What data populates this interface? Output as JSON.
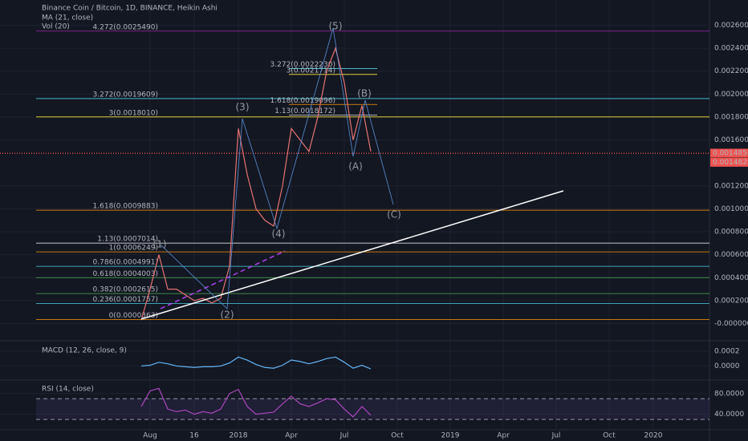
{
  "chart_data": [
    {
      "type": "line",
      "title": "Binance Coin / Bitcoin, 1D, BINANCE, Heikin Ashi",
      "indicators": [
        "MA (21, close)",
        "Vol (20)"
      ],
      "categories": [
        null,
        "Aug",
        null,
        null,
        null,
        null,
        "16",
        null,
        null,
        null,
        null,
        "2018",
        null,
        null,
        null,
        null,
        null,
        "Apr",
        null,
        null,
        null,
        null,
        null,
        "Jul",
        null,
        null,
        null,
        null,
        null,
        "Oct",
        null,
        null,
        null,
        null,
        null,
        "2019",
        null,
        null,
        null,
        null,
        null,
        "Apr",
        null,
        null,
        null,
        null,
        null,
        "Jul",
        null,
        null,
        null,
        null,
        null,
        "Oct",
        null,
        null,
        null,
        null,
        "2020",
        null
      ],
      "values": [
        3e-05,
        0.0003,
        0.0006,
        0.0003,
        0.0003,
        0.00025,
        0.0002,
        0.00022,
        0.00018,
        0.00022,
        0.0005,
        0.0017,
        0.0013,
        0.001,
        0.0009,
        0.00085,
        0.0012,
        0.0017,
        0.0016,
        0.0015,
        0.0018,
        0.0022,
        0.0024,
        0.0021,
        0.0016,
        0.0019,
        0.0015,
        null,
        null,
        null,
        null,
        null,
        null,
        null,
        null,
        null,
        null,
        null,
        null,
        null,
        null,
        null,
        null,
        null,
        null,
        null,
        null,
        null,
        null,
        null,
        null,
        null,
        null,
        null,
        null,
        null,
        null,
        null,
        null,
        null
      ],
      "color": "#e57373",
      "ylim": [
        -0.00015,
        0.00282
      ],
      "yticks": [
        {
          "value": 0.0026,
          "label": "0.0026000"
        },
        {
          "value": 0.0024,
          "label": "0.0024000"
        },
        {
          "value": 0.0022,
          "label": "0.0022000"
        },
        {
          "value": 0.002,
          "label": "0.0020000"
        },
        {
          "value": 0.0018,
          "label": "0.0018000"
        },
        {
          "value": 0.0016,
          "label": "0.0016000"
        },
        {
          "value": 0.0012,
          "label": "0.0012000"
        },
        {
          "value": 0.001,
          "label": "0.0010000"
        },
        {
          "value": 0.0008,
          "label": "0.0008000"
        },
        {
          "value": 0.0006,
          "label": "0.0006000"
        },
        {
          "value": 0.0004,
          "label": "0.0004000"
        },
        {
          "value": 0.0002,
          "label": "0.0002000"
        },
        {
          "value": 0,
          "label": "-0.0000000"
        }
      ],
      "grid": true,
      "last_price_labels": [
        {
          "value": 0.0014853,
          "label": "0.0014853"
        },
        {
          "value": 0.0014822,
          "label": "0.0014822"
        }
      ],
      "fib_levels": [
        {
          "label": "4.272(0.0025490)",
          "value": 0.002549,
          "color": "#9c27b0"
        },
        {
          "label": "3.272(0.0019609)",
          "value": 0.0019609,
          "color": "#4dd0e1"
        },
        {
          "label": "3(0.0018010)",
          "value": 0.001801,
          "color": "#ffeb3b"
        },
        {
          "label": "1.618(0.0009883)",
          "value": 0.0009883,
          "color": "#ff9800"
        },
        {
          "label": "1.13(0.0007014)",
          "value": 0.0007014,
          "color": "#e0e0e0"
        },
        {
          "label": "1(0.0006249)",
          "value": 0.0006249,
          "color": "#ff9800"
        },
        {
          "label": "0.786(0.0004991)",
          "value": 0.0004991,
          "color": "#4dd0e1"
        },
        {
          "label": "0.618(0.0004003)",
          "value": 0.0004003,
          "color": "#4caf50"
        },
        {
          "label": "0.382(0.0002615)",
          "value": 0.0002615,
          "color": "#4caf50"
        },
        {
          "label": "0.236(0.0001757)",
          "value": 0.0001757,
          "color": "#4dd0e1"
        },
        {
          "label": "0(0.0000363)",
          "value": 3.63e-05,
          "color": "#ff9800"
        }
      ],
      "fib_levels_inner": [
        {
          "label": "3.272(0.0022230)",
          "value": 0.002223,
          "color": "#4dd0e1"
        },
        {
          "label": "3(0.0021714)",
          "value": 0.0021714,
          "color": "#ffeb3b"
        },
        {
          "label": "1.618(0.0019096)",
          "value": 0.0019096,
          "color": "#ff9800"
        },
        {
          "label": "1.13(0.0018172)",
          "value": 0.0018172,
          "color": "#e0e0e0"
        }
      ],
      "annotations": [
        "(1)",
        "(2)",
        "(3)",
        "(4)",
        "(5)",
        "(A)",
        "(B)",
        "(C)"
      ]
    },
    {
      "type": "line",
      "title": "MACD (12, 26, close, 9)",
      "values": [
        0,
        1e-05,
        5e-05,
        3e-05,
        0,
        -1e-05,
        -2e-05,
        -1e-05,
        -1e-05,
        0,
        4e-05,
        0.00012,
        8e-05,
        2e-05,
        -2e-05,
        -3e-05,
        1e-05,
        8e-05,
        6e-05,
        3e-05,
        6e-05,
        0.0001,
        0.00012,
        5e-05,
        -3e-05,
        1e-05,
        -4e-05
      ],
      "color": "#64b5f6",
      "ylim": [
        -0.00019,
        0.00034
      ],
      "yticks": [
        {
          "value": 0.0002,
          "label": "0.0002"
        },
        {
          "value": 0,
          "label": "0.0000"
        }
      ]
    },
    {
      "type": "line",
      "title": "RSI (14, close)",
      "values": [
        55,
        85,
        90,
        50,
        45,
        48,
        40,
        45,
        42,
        50,
        80,
        88,
        55,
        40,
        42,
        44,
        60,
        75,
        60,
        55,
        62,
        70,
        68,
        50,
        35,
        55,
        38
      ],
      "color": "#ab47bc",
      "ylim": [
        10,
        106
      ],
      "yticks": [
        {
          "value": 80,
          "label": "80.0000"
        },
        {
          "value": 40,
          "label": "40.0000"
        }
      ],
      "bands": [
        70,
        30
      ]
    }
  ]
}
